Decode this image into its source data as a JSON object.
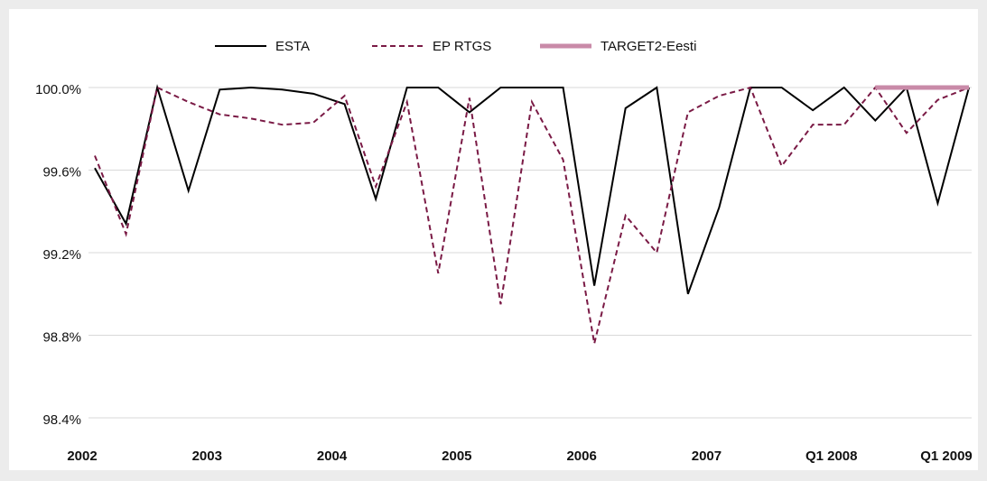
{
  "chart_data": {
    "type": "line",
    "categories": [
      "2002",
      null,
      null,
      null,
      "2003",
      null,
      null,
      null,
      "2004",
      null,
      null,
      null,
      "2005",
      null,
      null,
      null,
      "2006",
      null,
      null,
      null,
      "2007",
      null,
      null,
      null,
      "Q1 2008",
      null,
      null,
      null,
      "Q1 2009"
    ],
    "series": [
      {
        "name": "ESTA",
        "color": "#000000",
        "dashed": false,
        "line_width": 2,
        "values": [
          99.61,
          99.34,
          100.0,
          99.5,
          99.99,
          100.0,
          99.99,
          99.97,
          99.92,
          99.46,
          100.0,
          100.0,
          99.88,
          100.0,
          100.0,
          100.0,
          99.04,
          99.9,
          100.0,
          99.0,
          99.42,
          100.0,
          100.0,
          99.89,
          100.0,
          99.84,
          100.0,
          99.44,
          100.0
        ]
      },
      {
        "name": "EP RTGS",
        "color": "#7a1a45",
        "dashed": true,
        "line_width": 2,
        "values": [
          99.67,
          99.29,
          100.0,
          99.93,
          99.87,
          99.85,
          99.82,
          99.83,
          99.96,
          99.52,
          99.93,
          99.1,
          99.95,
          98.95,
          99.93,
          99.65,
          98.76,
          99.38,
          99.2,
          99.88,
          99.96,
          100.0,
          99.62,
          99.82,
          99.82,
          100.0,
          99.78,
          99.94,
          100.0
        ]
      },
      {
        "name": "TARGET2-Eesti",
        "color": "#c98aa8",
        "dashed": false,
        "line_width": 5,
        "values": [
          null,
          null,
          null,
          null,
          null,
          null,
          null,
          null,
          null,
          null,
          null,
          null,
          null,
          null,
          null,
          null,
          null,
          null,
          null,
          null,
          null,
          null,
          null,
          null,
          null,
          100.0,
          100.0,
          100.0,
          100.0
        ]
      }
    ],
    "ylim": [
      98.4,
      100.0
    ],
    "yticks": [
      {
        "value": 98.4,
        "label": "98.4%"
      },
      {
        "value": 98.8,
        "label": "98.8%"
      },
      {
        "value": 99.2,
        "label": "99.2%"
      },
      {
        "value": 99.6,
        "label": "99.6%"
      },
      {
        "value": 100.0,
        "label": "100.0%"
      }
    ],
    "grid": true,
    "legend": "top"
  }
}
